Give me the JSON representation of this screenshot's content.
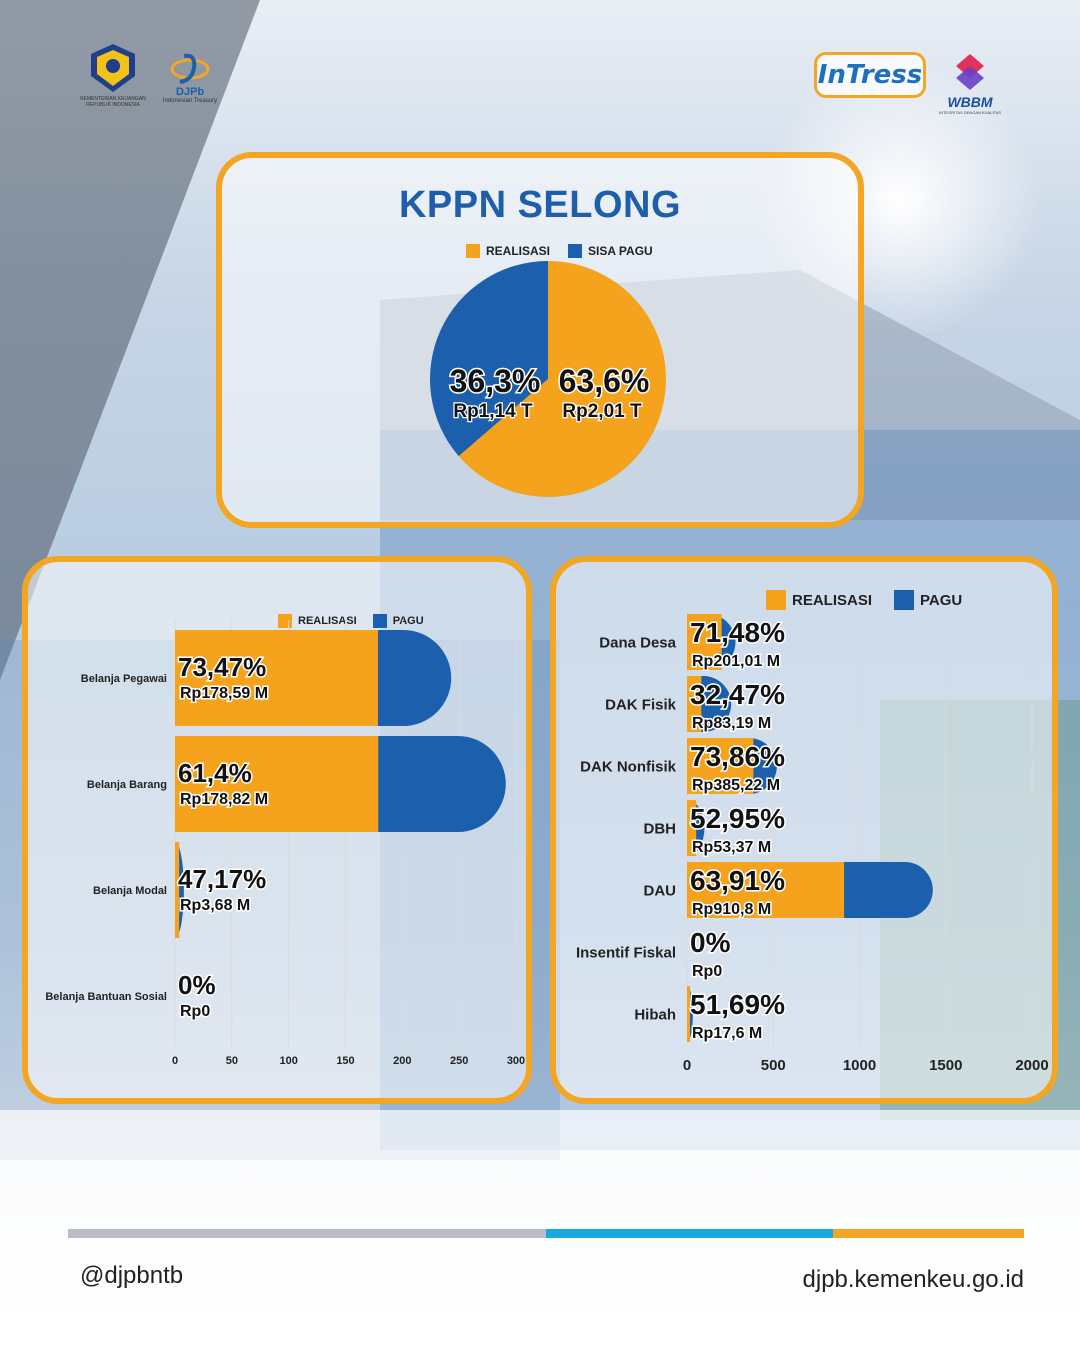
{
  "header": {
    "kemenkeu_text": "KEMENTERIAN KEUANGAN REPUBLIK INDONESIA",
    "djpb_name": "DJPb",
    "djpb_sub": "Indonesian Treasury",
    "intress_logo": "InTress",
    "wbbm_name": "WBBM",
    "wbbm_sub": "INTEGRITAS DENGAN KUALITAS"
  },
  "colors": {
    "realisasi": "#f5a21d",
    "pagu": "#1c5fad",
    "title": "#1f5eaa",
    "border": "#f2a623"
  },
  "chart_data": [
    {
      "type": "pie",
      "title": "KPPN SELONG",
      "legend": [
        "REALISASI",
        "SISA PAGU"
      ],
      "slices": [
        {
          "name": "REALISASI",
          "percent": 63.6,
          "percent_label": "63,6%",
          "amount_label": "Rp2,01 T"
        },
        {
          "name": "SISA PAGU",
          "percent": 36.3,
          "percent_label": "36,3%",
          "amount_label": "Rp1,14 T"
        }
      ]
    },
    {
      "type": "bar",
      "orientation": "horizontal",
      "legend": [
        "REALISASI",
        "PAGU"
      ],
      "categories": [
        "Belanja Pegawai",
        "Belanja Barang",
        "Belanja Modal",
        "Belanja Bantuan Sosial"
      ],
      "series": [
        {
          "name": "REALISASI",
          "values": [
            178.59,
            178.82,
            3.68,
            0
          ]
        },
        {
          "name": "PAGU",
          "values": [
            243,
            291,
            7.8,
            0
          ]
        }
      ],
      "percent_labels": [
        "73,47%",
        "61,4%",
        "47,17%",
        "0%"
      ],
      "amount_labels": [
        "Rp178,59 M",
        "Rp178,82 M",
        "Rp3,68 M",
        "Rp0"
      ],
      "xticks": [
        "0",
        "50",
        "100",
        "150",
        "200",
        "250",
        "300"
      ],
      "xlim": [
        0,
        300
      ]
    },
    {
      "type": "bar",
      "orientation": "horizontal",
      "legend": [
        "REALISASI",
        "PAGU"
      ],
      "categories": [
        "Dana Desa",
        "DAK Fisik",
        "DAK Nonfisik",
        "DBH",
        "DAU",
        "Insentif Fiskal",
        "Hibah"
      ],
      "series": [
        {
          "name": "REALISASI",
          "values": [
            201.01,
            83.19,
            385.22,
            53.37,
            910.8,
            0,
            17.6
          ]
        },
        {
          "name": "PAGU",
          "values": [
            281,
            256,
            521,
            101,
            1425,
            0,
            34
          ]
        }
      ],
      "percent_labels": [
        "71,48%",
        "32,47%",
        "73,86%",
        "52,95%",
        "63,91%",
        "0%",
        "51,69%"
      ],
      "amount_labels": [
        "Rp201,01 M",
        "Rp83,19 M",
        "Rp385,22 M",
        "Rp53,37 M",
        "Rp910,8 M",
        "Rp0",
        "Rp17,6 M"
      ],
      "xticks": [
        "0",
        "500",
        "1000",
        "1500",
        "2000"
      ],
      "xlim": [
        0,
        2000
      ]
    }
  ],
  "footer": {
    "handle": "@djpbntb",
    "website": "djpb.kemenkeu.go.id",
    "bar_colors": [
      "#b9bdc3",
      "#18a8dc",
      "#f2a623"
    ],
    "bar_fractions": [
      0.5,
      0.3,
      0.2
    ]
  }
}
